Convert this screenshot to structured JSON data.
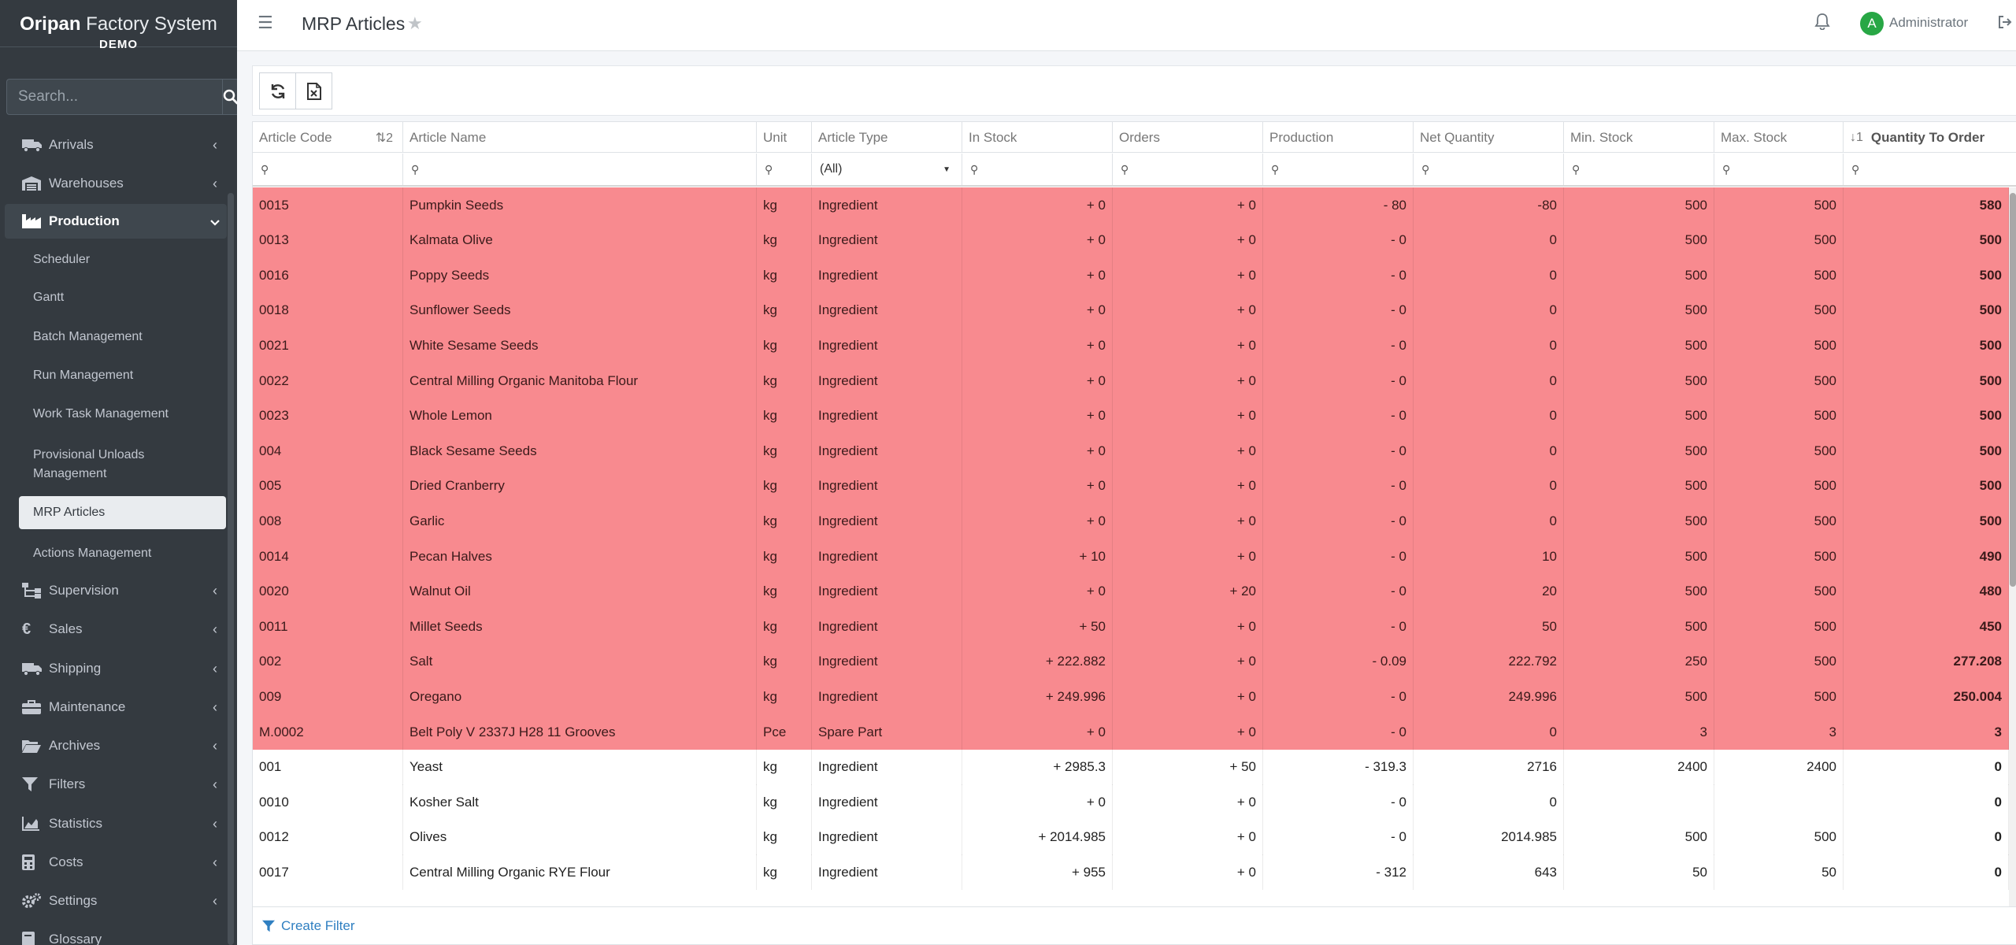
{
  "brand": {
    "title_bold": "Oripan",
    "title_rest": " Factory System",
    "subtitle": "DEMO"
  },
  "search": {
    "placeholder": "Search..."
  },
  "nav": {
    "arrivals": "Arrivals",
    "warehouses": "Warehouses",
    "production": "Production",
    "scheduler": "Scheduler",
    "gantt": "Gantt",
    "batch": "Batch Management",
    "run": "Run Management",
    "worktask": "Work Task Management",
    "provisional": "Provisional Unloads Management",
    "mrp": "MRP Articles",
    "actions": "Actions Management",
    "supervision": "Supervision",
    "sales": "Sales",
    "shipping": "Shipping",
    "maintenance": "Maintenance",
    "archives": "Archives",
    "filters": "Filters",
    "statistics": "Statistics",
    "costs": "Costs",
    "settings": "Settings",
    "glossary": "Glossary"
  },
  "topbar": {
    "title": "MRP Articles",
    "user": "Administrator",
    "avatar_letter": "A"
  },
  "grid": {
    "columns": {
      "code": "Article Code",
      "code_sort": "2",
      "name": "Article Name",
      "unit": "Unit",
      "type": "Article Type",
      "stock": "In Stock",
      "orders": "Orders",
      "production": "Production",
      "net": "Net Quantity",
      "min": "Min. Stock",
      "max": "Max. Stock",
      "qto_sort": "1",
      "qto": "Quantity To Order"
    },
    "type_filter": "(All)",
    "rows": [
      {
        "code": "0015",
        "name": "Pumpkin Seeds",
        "unit": "kg",
        "type": "Ingredient",
        "stock": "+ 0",
        "orders": "+ 0",
        "prod": "- 80",
        "net": "-80",
        "min": "500",
        "max": "500",
        "qto": "580",
        "red": true
      },
      {
        "code": "0013",
        "name": "Kalmata Olive",
        "unit": "kg",
        "type": "Ingredient",
        "stock": "+ 0",
        "orders": "+ 0",
        "prod": "- 0",
        "net": "0",
        "min": "500",
        "max": "500",
        "qto": "500",
        "red": true
      },
      {
        "code": "0016",
        "name": "Poppy Seeds",
        "unit": "kg",
        "type": "Ingredient",
        "stock": "+ 0",
        "orders": "+ 0",
        "prod": "- 0",
        "net": "0",
        "min": "500",
        "max": "500",
        "qto": "500",
        "red": true
      },
      {
        "code": "0018",
        "name": "Sunflower Seeds",
        "unit": "kg",
        "type": "Ingredient",
        "stock": "+ 0",
        "orders": "+ 0",
        "prod": "- 0",
        "net": "0",
        "min": "500",
        "max": "500",
        "qto": "500",
        "red": true
      },
      {
        "code": "0021",
        "name": "White Sesame Seeds",
        "unit": "kg",
        "type": "Ingredient",
        "stock": "+ 0",
        "orders": "+ 0",
        "prod": "- 0",
        "net": "0",
        "min": "500",
        "max": "500",
        "qto": "500",
        "red": true
      },
      {
        "code": "0022",
        "name": "Central Milling Organic Manitoba Flour",
        "unit": "kg",
        "type": "Ingredient",
        "stock": "+ 0",
        "orders": "+ 0",
        "prod": "- 0",
        "net": "0",
        "min": "500",
        "max": "500",
        "qto": "500",
        "red": true
      },
      {
        "code": "0023",
        "name": "Whole Lemon",
        "unit": "kg",
        "type": "Ingredient",
        "stock": "+ 0",
        "orders": "+ 0",
        "prod": "- 0",
        "net": "0",
        "min": "500",
        "max": "500",
        "qto": "500",
        "red": true
      },
      {
        "code": "004",
        "name": "Black Sesame Seeds",
        "unit": "kg",
        "type": "Ingredient",
        "stock": "+ 0",
        "orders": "+ 0",
        "prod": "- 0",
        "net": "0",
        "min": "500",
        "max": "500",
        "qto": "500",
        "red": true
      },
      {
        "code": "005",
        "name": "Dried Cranberry",
        "unit": "kg",
        "type": "Ingredient",
        "stock": "+ 0",
        "orders": "+ 0",
        "prod": "- 0",
        "net": "0",
        "min": "500",
        "max": "500",
        "qto": "500",
        "red": true
      },
      {
        "code": "008",
        "name": "Garlic",
        "unit": "kg",
        "type": "Ingredient",
        "stock": "+ 0",
        "orders": "+ 0",
        "prod": "- 0",
        "net": "0",
        "min": "500",
        "max": "500",
        "qto": "500",
        "red": true
      },
      {
        "code": "0014",
        "name": "Pecan Halves",
        "unit": "kg",
        "type": "Ingredient",
        "stock": "+ 10",
        "orders": "+ 0",
        "prod": "- 0",
        "net": "10",
        "min": "500",
        "max": "500",
        "qto": "490",
        "red": true
      },
      {
        "code": "0020",
        "name": "Walnut Oil",
        "unit": "kg",
        "type": "Ingredient",
        "stock": "+ 0",
        "orders": "+ 20",
        "prod": "- 0",
        "net": "20",
        "min": "500",
        "max": "500",
        "qto": "480",
        "red": true
      },
      {
        "code": "0011",
        "name": "Millet Seeds",
        "unit": "kg",
        "type": "Ingredient",
        "stock": "+ 50",
        "orders": "+ 0",
        "prod": "- 0",
        "net": "50",
        "min": "500",
        "max": "500",
        "qto": "450",
        "red": true
      },
      {
        "code": "002",
        "name": "Salt",
        "unit": "kg",
        "type": "Ingredient",
        "stock": "+ 222.882",
        "orders": "+ 0",
        "prod": "- 0.09",
        "net": "222.792",
        "min": "250",
        "max": "500",
        "qto": "277.208",
        "red": true
      },
      {
        "code": "009",
        "name": "Oregano",
        "unit": "kg",
        "type": "Ingredient",
        "stock": "+ 249.996",
        "orders": "+ 0",
        "prod": "- 0",
        "net": "249.996",
        "min": "500",
        "max": "500",
        "qto": "250.004",
        "red": true
      },
      {
        "code": "M.0002",
        "name": "Belt Poly V 2337J H28 11 Grooves",
        "unit": "Pce",
        "type": "Spare Part",
        "stock": "+ 0",
        "orders": "+ 0",
        "prod": "- 0",
        "net": "0",
        "min": "3",
        "max": "3",
        "qto": "3",
        "red": true
      },
      {
        "code": "001",
        "name": "Yeast",
        "unit": "kg",
        "type": "Ingredient",
        "stock": "+ 2985.3",
        "orders": "+ 50",
        "prod": "- 319.3",
        "net": "2716",
        "min": "2400",
        "max": "2400",
        "qto": "0",
        "red": false
      },
      {
        "code": "0010",
        "name": "Kosher Salt",
        "unit": "kg",
        "type": "Ingredient",
        "stock": "+ 0",
        "orders": "+ 0",
        "prod": "- 0",
        "net": "0",
        "min": "",
        "max": "",
        "qto": "0",
        "red": false
      },
      {
        "code": "0012",
        "name": "Olives",
        "unit": "kg",
        "type": "Ingredient",
        "stock": "+ 2014.985",
        "orders": "+ 0",
        "prod": "- 0",
        "net": "2014.985",
        "min": "500",
        "max": "500",
        "qto": "0",
        "red": false
      },
      {
        "code": "0017",
        "name": "Central Milling Organic RYE Flour",
        "unit": "kg",
        "type": "Ingredient",
        "stock": "+ 955",
        "orders": "+ 0",
        "prod": "- 312",
        "net": "643",
        "min": "50",
        "max": "50",
        "qto": "0",
        "red": false
      }
    ]
  },
  "footer": {
    "create_filter": "Create Filter"
  },
  "colors": {
    "highlight_row": "#f88a8f",
    "sidebar_bg": "#343a40",
    "link": "#2f7fc1",
    "avatar": "#28a745"
  }
}
